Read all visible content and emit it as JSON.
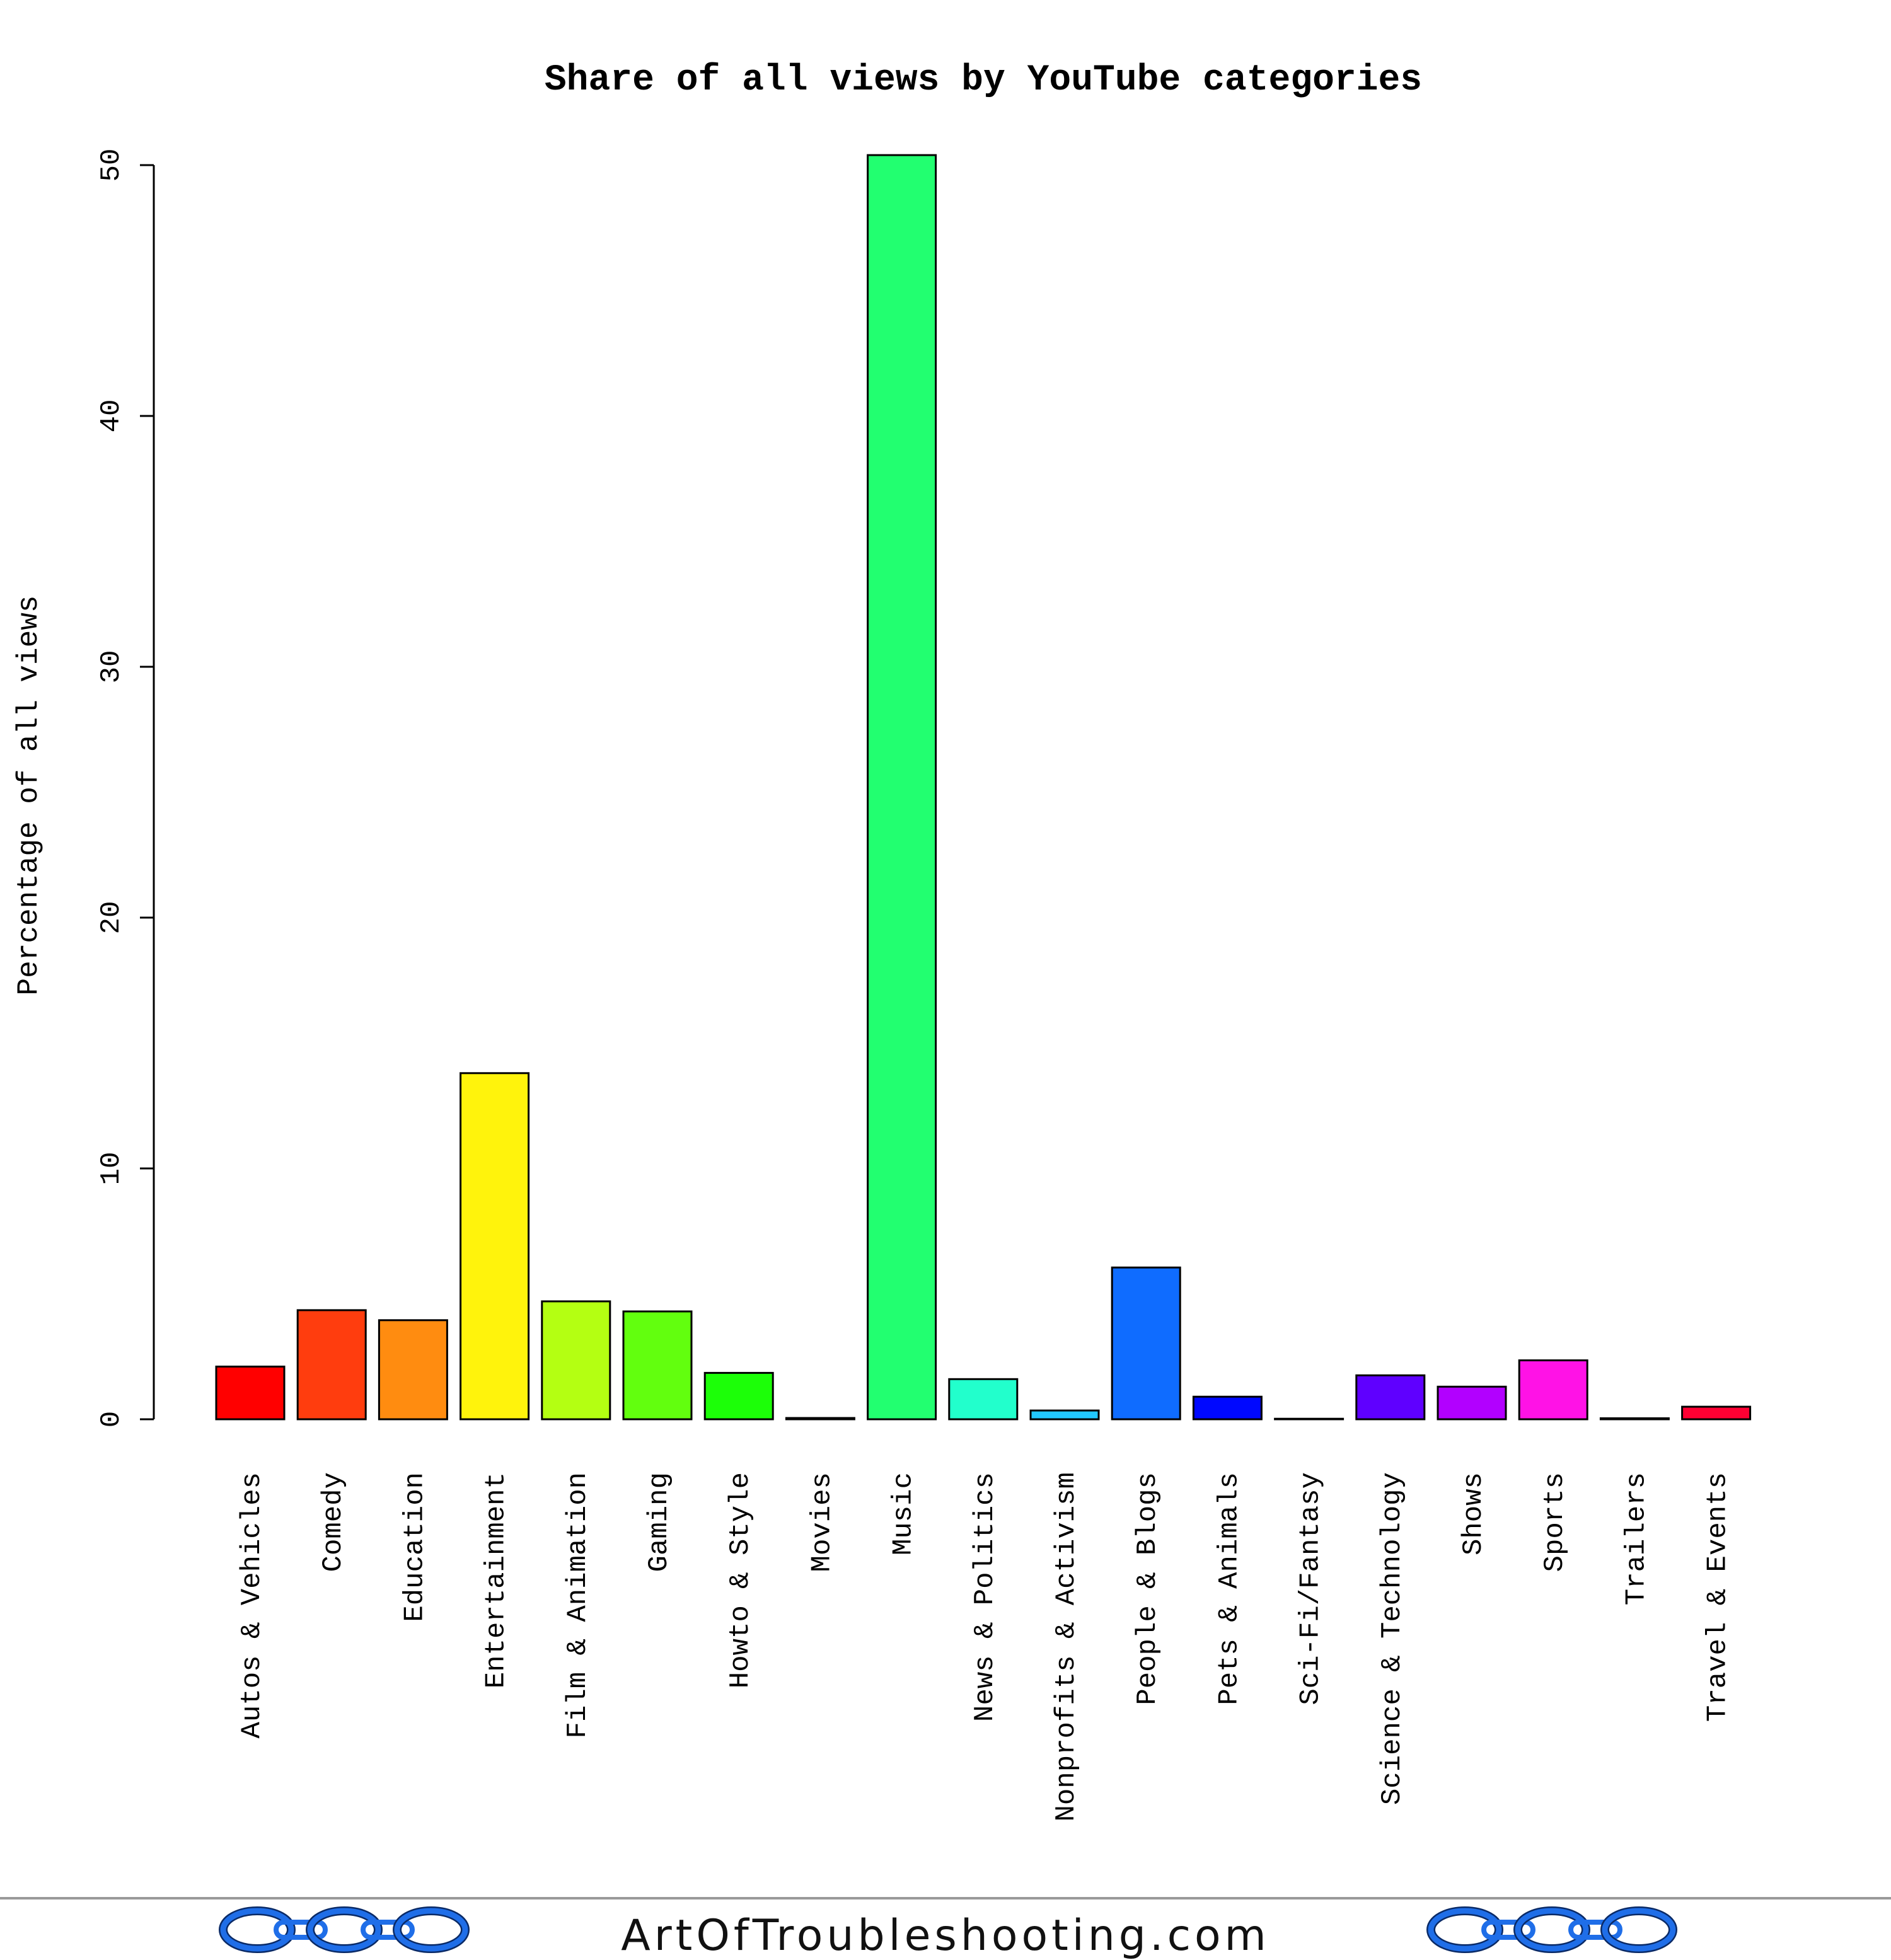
{
  "chart_data": {
    "type": "bar",
    "title": "Share of all views by YouTube categories",
    "xlabel": "",
    "ylabel": "Percentage of all views",
    "ylim": [
      0,
      50
    ],
    "yticks": [
      0,
      10,
      20,
      30,
      40,
      50
    ],
    "grid": false,
    "categories": [
      "Autos & Vehicles",
      "Comedy",
      "Education",
      "Entertainment",
      "Film & Animation",
      "Gaming",
      "Howto & Style",
      "Movies",
      "Music",
      "News & Politics",
      "Nonprofits & Activism",
      "People & Blogs",
      "Pets & Animals",
      "Sci-Fi/Fantasy",
      "Science & Technology",
      "Shows",
      "Sports",
      "Trailers",
      "Travel & Events"
    ],
    "values": [
      2.1,
      4.35,
      3.95,
      13.8,
      4.7,
      4.3,
      1.85,
      0.05,
      50.4,
      1.6,
      0.35,
      6.05,
      0.9,
      0.02,
      1.75,
      1.3,
      2.35,
      0.04,
      0.5
    ],
    "colors": [
      "#ff0000",
      "#ff3d0e",
      "#ff8c10",
      "#fff30c",
      "#b4ff12",
      "#62ff0e",
      "#1cff08",
      "#00ff40",
      "#22ff70",
      "#22ffcc",
      "#22c8ff",
      "#0f6cff",
      "#0008ff",
      "#3b00ff",
      "#5f00ff",
      "#b200ff",
      "#ff12e6",
      "#ff0099",
      "#ff0033"
    ]
  },
  "footer": {
    "site": "ArtOfTroubleshooting.com",
    "logo_icon": "chain-links-icon",
    "accent_color": "#1f6ee8"
  }
}
